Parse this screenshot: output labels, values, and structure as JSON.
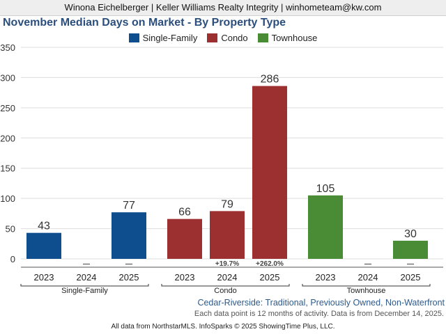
{
  "header": {
    "text": "Winona Eichelberger | Keller Williams Realty Integrity | winhometeam@kw.com"
  },
  "chart_data": {
    "type": "bar",
    "title": "November Median Days on Market - By Property Type",
    "ylim": [
      0,
      350
    ],
    "yticks": [
      0,
      50,
      100,
      150,
      200,
      250,
      300,
      350
    ],
    "ytick_labels": [
      "0",
      "50",
      "100",
      "150",
      "200",
      "250",
      "300",
      "350"
    ],
    "legend": [
      "Single-Family",
      "Condo",
      "Townhouse"
    ],
    "groups": [
      {
        "name": "Single-Family",
        "color": "#0e4d8e",
        "bars": [
          {
            "year": "2023",
            "value": 43,
            "label": "43",
            "change": ""
          },
          {
            "year": "2024",
            "value": null,
            "label": "",
            "change": "—"
          },
          {
            "year": "2025",
            "value": 77,
            "label": "77",
            "change": "—"
          }
        ]
      },
      {
        "name": "Condo",
        "color": "#9c2f2f",
        "bars": [
          {
            "year": "2023",
            "value": 66,
            "label": "66",
            "change": ""
          },
          {
            "year": "2024",
            "value": 79,
            "label": "79",
            "change": "+19.7%"
          },
          {
            "year": "2025",
            "value": 286,
            "label": "286",
            "change": "+262.0%"
          }
        ]
      },
      {
        "name": "Townhouse",
        "color": "#4a8b36",
        "bars": [
          {
            "year": "2023",
            "value": 105,
            "label": "105",
            "change": ""
          },
          {
            "year": "2024",
            "value": null,
            "label": "",
            "change": "—"
          },
          {
            "year": "2025",
            "value": 30,
            "label": "30",
            "change": "—"
          }
        ]
      }
    ]
  },
  "footer": {
    "subtitle": "Cedar-Riverside: Traditional, Previously Owned, Non-Waterfront",
    "note": "Each data point is 12 months of activity. Data is from December 14, 2025.",
    "source": "All data from NorthstarMLS. InfoSparks © 2025 ShowingTime Plus, LLC."
  }
}
